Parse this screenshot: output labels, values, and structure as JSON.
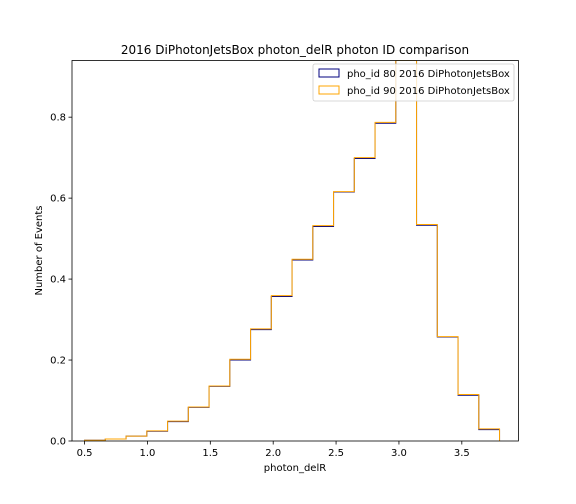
{
  "chart_data": {
    "type": "step",
    "title": "2016 DiPhotonJetsBox photon_delR photon ID comparison",
    "xlabel": "photon_delR",
    "ylabel": "Number of Events",
    "xlim": [
      0.4,
      3.95
    ],
    "ylim": [
      0,
      0.94
    ],
    "xticks": [
      0.5,
      1.0,
      1.5,
      2.0,
      2.5,
      3.0,
      3.5
    ],
    "xtick_labels": [
      "0.5",
      "1.0",
      "1.5",
      "2.0",
      "2.5",
      "3.0",
      "3.5"
    ],
    "yticks": [
      0.0,
      0.2,
      0.4,
      0.6,
      0.8
    ],
    "ytick_labels": [
      "0.0",
      "0.2",
      "0.4",
      "0.6",
      "0.8"
    ],
    "bin_edges": [
      0.5,
      0.665,
      0.83,
      0.995,
      1.16,
      1.325,
      1.49,
      1.655,
      1.82,
      1.985,
      2.15,
      2.315,
      2.48,
      2.645,
      2.81,
      2.975,
      3.14,
      3.305,
      3.47,
      3.635,
      3.8
    ],
    "legend_position": "top-right",
    "series": [
      {
        "name": "pho_id 80 2016 DiPhotonJetsBox",
        "color": "#00007f",
        "values": [
          0.002,
          0.005,
          0.012,
          0.024,
          0.048,
          0.083,
          0.135,
          0.2,
          0.275,
          0.357,
          0.447,
          0.53,
          0.615,
          0.698,
          0.785,
          0.94,
          0.533,
          0.257,
          0.113,
          0.028
        ]
      },
      {
        "name": "pho_id 90 2016 DiPhotonJetsBox",
        "color": "#ffa500",
        "values": [
          0.002,
          0.005,
          0.012,
          0.025,
          0.049,
          0.084,
          0.136,
          0.202,
          0.277,
          0.359,
          0.449,
          0.532,
          0.616,
          0.7,
          0.787,
          0.94,
          0.535,
          0.258,
          0.115,
          0.03
        ]
      }
    ]
  }
}
